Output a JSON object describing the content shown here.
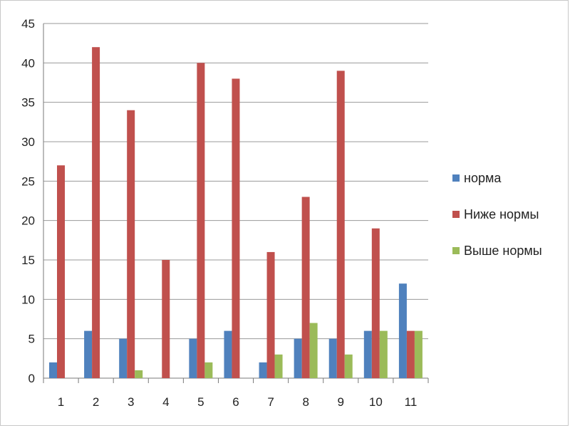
{
  "chart_data": {
    "type": "bar",
    "title": "",
    "xlabel": "",
    "ylabel": "",
    "categories": [
      "1",
      "2",
      "3",
      "4",
      "5",
      "6",
      "7",
      "8",
      "9",
      "10",
      "11"
    ],
    "ylim": [
      0,
      45
    ],
    "yticks": [
      "0",
      "5",
      "10",
      "15",
      "20",
      "25",
      "30",
      "35",
      "40",
      "45"
    ],
    "grid": true,
    "legend_position": "right",
    "series": [
      {
        "name": "норма",
        "color": "#4f81bd",
        "values": [
          2,
          6,
          5,
          0,
          5,
          6,
          2,
          5,
          5,
          6,
          12
        ]
      },
      {
        "name": "Ниже нормы",
        "color": "#c0504d",
        "values": [
          27,
          42,
          34,
          15,
          40,
          38,
          16,
          23,
          39,
          19,
          6
        ]
      },
      {
        "name": "Выше нормы",
        "color": "#9bbb59",
        "values": [
          0,
          0,
          1,
          0,
          2,
          0,
          3,
          7,
          3,
          6,
          6
        ]
      }
    ]
  }
}
